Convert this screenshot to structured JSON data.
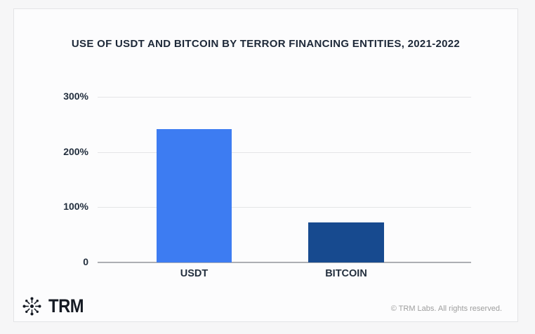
{
  "title": "USE OF USDT AND BITCOIN BY TERROR FINANCING ENTITIES, 2021-2022",
  "chart_data": {
    "type": "bar",
    "categories": [
      "USDT",
      "BITCOIN"
    ],
    "values": [
      242,
      72
    ],
    "bar_colors": [
      "#3d7cf2",
      "#174a8f"
    ],
    "title": "USE OF USDT AND BITCOIN BY TERROR FINANCING ENTITIES, 2021-2022",
    "xlabel": "",
    "ylabel": "",
    "ylim": [
      0,
      300
    ],
    "yticks": [
      0,
      100,
      200,
      300
    ],
    "ytick_labels": [
      "0",
      "100%",
      "200%",
      "300%"
    ],
    "grid": true,
    "legend": false
  },
  "footer": {
    "logo_text": "TRM",
    "copyright": "© TRM Labs. All rights reserved."
  },
  "colors": {
    "usdt_bar": "#3d7cf2",
    "bitcoin_bar": "#174a8f",
    "title_text": "#1d2838",
    "axis_text": "#232f3e",
    "gridline": "#e4e5e7",
    "axis_line": "#adafb3",
    "copyright_text": "#9e9e9e",
    "card_background": "#fcfcfd",
    "page_background": "#f6f6f7",
    "card_border": "#e3e4e6"
  }
}
